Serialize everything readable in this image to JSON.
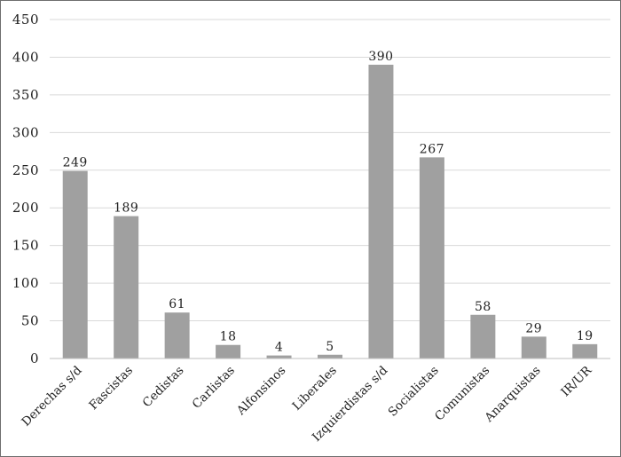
{
  "chart_data": {
    "type": "bar",
    "categories": [
      "Derechas s/d",
      "Fascistas",
      "Cedistas",
      "Carlistas",
      "Alfonsinos",
      "Liberales",
      "Izquierdistas s/d",
      "Socialistas",
      "Comunistas",
      "Anarquistas",
      "IR/UR"
    ],
    "values": [
      249,
      189,
      61,
      18,
      4,
      5,
      390,
      267,
      58,
      29,
      19
    ],
    "yticks": [
      0,
      50,
      100,
      150,
      200,
      250,
      300,
      350,
      400,
      450
    ],
    "ylim": [
      0,
      450
    ],
    "grid": true,
    "legend": "none",
    "title": "",
    "xlabel": "",
    "ylabel": "",
    "colors": {
      "bar": "#a0a0a0",
      "grid": "#d9d9d9",
      "axis": "#bfbfbf"
    }
  }
}
